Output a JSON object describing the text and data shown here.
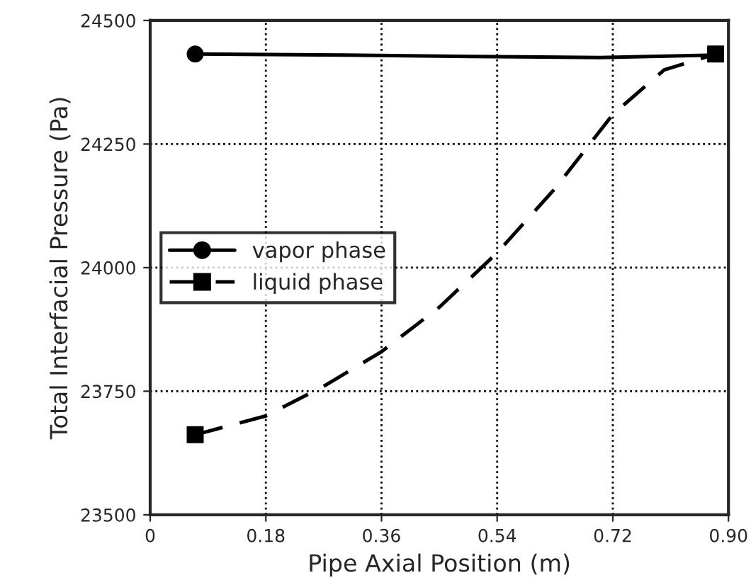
{
  "chart_data": {
    "type": "line",
    "xlabel": "Pipe Axial Position (m)",
    "ylabel": "Total Interfacial Pressure (Pa)",
    "xlim": [
      0,
      0.9
    ],
    "xticks": [
      {
        "value": 0,
        "label": "0"
      },
      0.18,
      0.36,
      0.54,
      0.72,
      {
        "value": 0.9,
        "label": "0.90"
      }
    ],
    "ylim": [
      23500,
      24500
    ],
    "yticks": [
      23500,
      23750,
      24000,
      24250,
      24500
    ],
    "grid": true,
    "legend": "center left",
    "series": [
      {
        "color": "#000000",
        "line_style": "solid",
        "marker": "none",
        "x": [
          0.07,
          0.3,
          0.5,
          0.7,
          0.88
        ],
        "values": [
          24432,
          24430,
          24427,
          24425,
          24430
        ]
      },
      {
        "color": "#000000",
        "line_style": "dashed",
        "marker": "none",
        "x": [
          0.07,
          0.18,
          0.27,
          0.36,
          0.45,
          0.54,
          0.63,
          0.72,
          0.8,
          0.88
        ],
        "values": [
          23662,
          23700,
          23760,
          23830,
          23920,
          24030,
          24160,
          24310,
          24400,
          24432
        ]
      },
      {
        "type": "scatter",
        "name": "vapor phase",
        "color": "#000000",
        "marker": "circle",
        "line_style": "solid",
        "x": [
          0.07
        ],
        "values": [
          24432
        ]
      },
      {
        "type": "scatter",
        "name": "liquid phase",
        "color": "#000000",
        "marker": "square",
        "line_style": "dashed",
        "x": [
          0.07,
          0.88
        ],
        "values": [
          23662,
          24432
        ]
      }
    ]
  }
}
